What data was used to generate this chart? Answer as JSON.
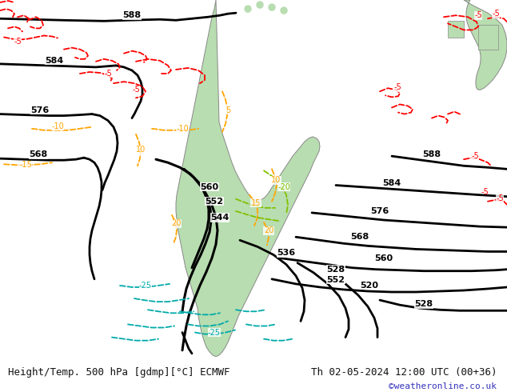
{
  "title_left": "Height/Temp. 500 hPa [gdmp][°C] ECMWF",
  "title_right": "Th 02-05-2024 12:00 UTC (00+36)",
  "watermark": "©weatheronline.co.uk",
  "bg_color": "#d8d8d8",
  "land_color": "#aad4aa",
  "land_color2": "#c8e8c8",
  "border_color": "#999999",
  "ocean_color": "#d8d8d8",
  "text_color": "#111111",
  "watermark_color": "#3333bb",
  "font_size_title": 9,
  "font_size_watermark": 8,
  "fig_width": 6.34,
  "fig_height": 4.9,
  "dpi": 100
}
